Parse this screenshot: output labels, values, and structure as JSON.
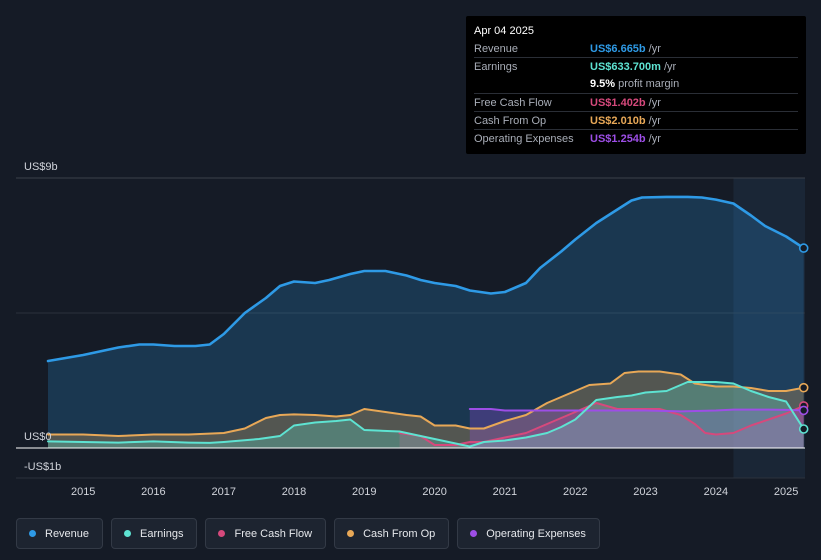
{
  "tooltip": {
    "date": "Apr 04 2025",
    "rows": [
      {
        "label": "Revenue",
        "value": "US$6.665b",
        "unit": "/yr",
        "color": "#2e9ae6"
      },
      {
        "label": "Earnings",
        "value": "US$633.700m",
        "unit": "/yr",
        "color": "#5ee3d2"
      },
      {
        "label": "",
        "value": "9.5%",
        "unit": "profit margin",
        "color": "#ffffff"
      },
      {
        "label": "Free Cash Flow",
        "value": "US$1.402b",
        "unit": "/yr",
        "color": "#d6497c"
      },
      {
        "label": "Cash From Op",
        "value": "US$2.010b",
        "unit": "/yr",
        "color": "#e8a857"
      },
      {
        "label": "Operating Expenses",
        "value": "US$1.254b",
        "unit": "/yr",
        "color": "#9d4ee6"
      }
    ]
  },
  "chart_data": {
    "type": "line",
    "title": "",
    "xlabel": "",
    "ylabel": "",
    "ylim": [
      -1,
      9
    ],
    "xlim": [
      2014.4,
      2025.25
    ],
    "y_axis_labels": [
      {
        "value": 9,
        "text": "US$9b"
      },
      {
        "value": 0,
        "text": "US$0"
      },
      {
        "value": -1,
        "text": "-US$1b"
      }
    ],
    "x_ticks": [
      "2015",
      "2016",
      "2017",
      "2018",
      "2019",
      "2020",
      "2021",
      "2022",
      "2023",
      "2024",
      "2025"
    ],
    "forecast_start": 2024.25,
    "series": [
      {
        "name": "Revenue",
        "color": "#2e9ae6",
        "fill": true,
        "points": [
          [
            2014.5,
            2.9
          ],
          [
            2015.0,
            3.1
          ],
          [
            2015.5,
            3.35
          ],
          [
            2015.8,
            3.45
          ],
          [
            2016.0,
            3.45
          ],
          [
            2016.3,
            3.4
          ],
          [
            2016.6,
            3.4
          ],
          [
            2016.8,
            3.45
          ],
          [
            2017.0,
            3.8
          ],
          [
            2017.3,
            4.5
          ],
          [
            2017.6,
            5.0
          ],
          [
            2017.8,
            5.4
          ],
          [
            2018.0,
            5.55
          ],
          [
            2018.3,
            5.5
          ],
          [
            2018.5,
            5.6
          ],
          [
            2018.8,
            5.8
          ],
          [
            2019.0,
            5.9
          ],
          [
            2019.3,
            5.9
          ],
          [
            2019.6,
            5.75
          ],
          [
            2019.8,
            5.6
          ],
          [
            2020.0,
            5.5
          ],
          [
            2020.3,
            5.4
          ],
          [
            2020.5,
            5.25
          ],
          [
            2020.8,
            5.15
          ],
          [
            2021.0,
            5.2
          ],
          [
            2021.3,
            5.5
          ],
          [
            2021.5,
            6.0
          ],
          [
            2021.8,
            6.55
          ],
          [
            2022.0,
            6.95
          ],
          [
            2022.3,
            7.5
          ],
          [
            2022.6,
            7.95
          ],
          [
            2022.8,
            8.25
          ],
          [
            2022.95,
            8.35
          ],
          [
            2023.3,
            8.37
          ],
          [
            2023.6,
            8.37
          ],
          [
            2023.8,
            8.35
          ],
          [
            2024.0,
            8.28
          ],
          [
            2024.25,
            8.15
          ],
          [
            2024.5,
            7.75
          ],
          [
            2024.7,
            7.4
          ],
          [
            2025.0,
            7.05
          ],
          [
            2025.25,
            6.665
          ]
        ]
      },
      {
        "name": "Earnings",
        "color": "#5ee3d2",
        "fill": true,
        "points": [
          [
            2014.5,
            0.22
          ],
          [
            2015.0,
            0.2
          ],
          [
            2015.5,
            0.18
          ],
          [
            2016.0,
            0.22
          ],
          [
            2016.5,
            0.18
          ],
          [
            2016.8,
            0.17
          ],
          [
            2017.0,
            0.2
          ],
          [
            2017.5,
            0.3
          ],
          [
            2017.8,
            0.4
          ],
          [
            2018.0,
            0.75
          ],
          [
            2018.3,
            0.85
          ],
          [
            2018.6,
            0.9
          ],
          [
            2018.8,
            0.95
          ],
          [
            2019.0,
            0.6
          ],
          [
            2019.5,
            0.55
          ],
          [
            2019.8,
            0.4
          ],
          [
            2020.0,
            0.3
          ],
          [
            2020.3,
            0.15
          ],
          [
            2020.5,
            0.05
          ],
          [
            2020.7,
            0.2
          ],
          [
            2021.0,
            0.25
          ],
          [
            2021.3,
            0.35
          ],
          [
            2021.6,
            0.5
          ],
          [
            2021.8,
            0.7
          ],
          [
            2022.0,
            0.95
          ],
          [
            2022.3,
            1.6
          ],
          [
            2022.6,
            1.7
          ],
          [
            2022.8,
            1.75
          ],
          [
            2023.0,
            1.85
          ],
          [
            2023.3,
            1.9
          ],
          [
            2023.6,
            2.2
          ],
          [
            2024.0,
            2.2
          ],
          [
            2024.25,
            2.15
          ],
          [
            2024.5,
            1.9
          ],
          [
            2024.75,
            1.7
          ],
          [
            2025.0,
            1.55
          ],
          [
            2025.25,
            0.634
          ]
        ]
      },
      {
        "name": "Free Cash Flow",
        "color": "#d6497c",
        "fill": true,
        "points": [
          [
            2019.5,
            0.5
          ],
          [
            2019.8,
            0.4
          ],
          [
            2020.0,
            0.1
          ],
          [
            2020.3,
            0.1
          ],
          [
            2020.5,
            0.2
          ],
          [
            2020.7,
            0.2
          ],
          [
            2021.0,
            0.35
          ],
          [
            2021.3,
            0.5
          ],
          [
            2021.6,
            0.8
          ],
          [
            2022.0,
            1.2
          ],
          [
            2022.3,
            1.5
          ],
          [
            2022.6,
            1.3
          ],
          [
            2022.9,
            1.3
          ],
          [
            2023.2,
            1.3
          ],
          [
            2023.5,
            1.1
          ],
          [
            2023.7,
            0.8
          ],
          [
            2023.85,
            0.5
          ],
          [
            2024.0,
            0.45
          ],
          [
            2024.25,
            0.5
          ],
          [
            2024.5,
            0.75
          ],
          [
            2024.75,
            0.95
          ],
          [
            2025.0,
            1.15
          ],
          [
            2025.25,
            1.402
          ]
        ]
      },
      {
        "name": "Cash From Op",
        "color": "#e8a857",
        "fill": true,
        "points": [
          [
            2014.5,
            0.45
          ],
          [
            2015.0,
            0.45
          ],
          [
            2015.5,
            0.4
          ],
          [
            2016.0,
            0.45
          ],
          [
            2016.5,
            0.45
          ],
          [
            2017.0,
            0.5
          ],
          [
            2017.3,
            0.65
          ],
          [
            2017.6,
            1.0
          ],
          [
            2017.8,
            1.1
          ],
          [
            2018.0,
            1.12
          ],
          [
            2018.3,
            1.1
          ],
          [
            2018.6,
            1.05
          ],
          [
            2018.8,
            1.1
          ],
          [
            2019.0,
            1.3
          ],
          [
            2019.3,
            1.2
          ],
          [
            2019.6,
            1.1
          ],
          [
            2019.8,
            1.05
          ],
          [
            2020.0,
            0.75
          ],
          [
            2020.3,
            0.75
          ],
          [
            2020.5,
            0.65
          ],
          [
            2020.7,
            0.65
          ],
          [
            2021.0,
            0.9
          ],
          [
            2021.3,
            1.1
          ],
          [
            2021.6,
            1.5
          ],
          [
            2021.9,
            1.8
          ],
          [
            2022.2,
            2.1
          ],
          [
            2022.5,
            2.15
          ],
          [
            2022.7,
            2.5
          ],
          [
            2022.9,
            2.55
          ],
          [
            2023.2,
            2.55
          ],
          [
            2023.5,
            2.45
          ],
          [
            2023.7,
            2.15
          ],
          [
            2024.0,
            2.05
          ],
          [
            2024.25,
            2.05
          ],
          [
            2024.5,
            2.0
          ],
          [
            2024.75,
            1.9
          ],
          [
            2025.0,
            1.9
          ],
          [
            2025.25,
            2.01
          ]
        ]
      },
      {
        "name": "Operating Expenses",
        "color": "#9d4ee6",
        "fill": true,
        "points": [
          [
            2020.5,
            1.3
          ],
          [
            2020.8,
            1.3
          ],
          [
            2021.0,
            1.25
          ],
          [
            2021.5,
            1.25
          ],
          [
            2022.0,
            1.25
          ],
          [
            2022.5,
            1.25
          ],
          [
            2023.0,
            1.25
          ],
          [
            2023.5,
            1.22
          ],
          [
            2024.0,
            1.25
          ],
          [
            2024.25,
            1.28
          ],
          [
            2024.5,
            1.28
          ],
          [
            2024.75,
            1.28
          ],
          [
            2025.0,
            1.27
          ],
          [
            2025.25,
            1.254
          ]
        ]
      }
    ]
  },
  "legend": [
    {
      "label": "Revenue",
      "color": "#2e9ae6"
    },
    {
      "label": "Earnings",
      "color": "#5ee3d2"
    },
    {
      "label": "Free Cash Flow",
      "color": "#d6497c"
    },
    {
      "label": "Cash From Op",
      "color": "#e8a857"
    },
    {
      "label": "Operating Expenses",
      "color": "#9d4ee6"
    }
  ]
}
